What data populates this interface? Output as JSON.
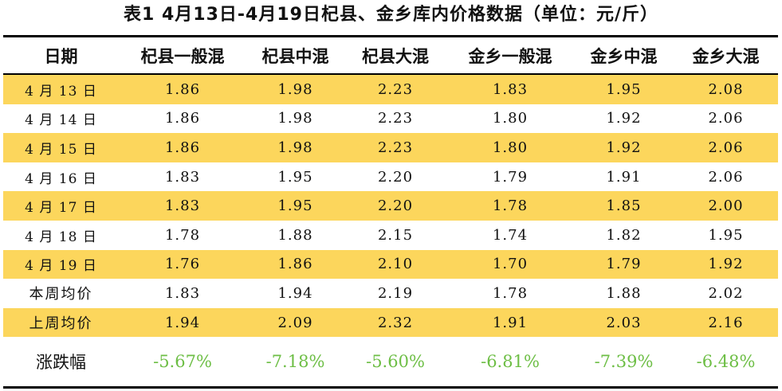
{
  "title": "表1  4月13日-4月19日杞县、金乡库内价格数据（单位：元/斤）",
  "colors": {
    "row_shade": "#FCD65C",
    "change_text": "#6DBE45",
    "rule": "#000000"
  },
  "table": {
    "headers": [
      "日期",
      "杞县一般混",
      "杞县中混",
      "杞县大混",
      "金乡一般混",
      "金乡中混",
      "金乡大混"
    ],
    "rows": [
      {
        "label": "4 月 13 日",
        "values": [
          "1.86",
          "1.98",
          "2.23",
          "1.83",
          "1.95",
          "2.08"
        ],
        "shaded": true
      },
      {
        "label": "4 月 14 日",
        "values": [
          "1.86",
          "1.98",
          "2.23",
          "1.80",
          "1.92",
          "2.06"
        ],
        "shaded": false
      },
      {
        "label": "4 月 15 日",
        "values": [
          "1.86",
          "1.98",
          "2.23",
          "1.80",
          "1.92",
          "2.06"
        ],
        "shaded": true
      },
      {
        "label": "4 月 16 日",
        "values": [
          "1.83",
          "1.95",
          "2.20",
          "1.79",
          "1.91",
          "2.06"
        ],
        "shaded": false
      },
      {
        "label": "4 月 17 日",
        "values": [
          "1.83",
          "1.95",
          "2.20",
          "1.78",
          "1.85",
          "2.00"
        ],
        "shaded": true
      },
      {
        "label": "4 月 18 日",
        "values": [
          "1.78",
          "1.88",
          "2.15",
          "1.74",
          "1.82",
          "1.95"
        ],
        "shaded": false
      },
      {
        "label": "4 月 19 日",
        "values": [
          "1.76",
          "1.86",
          "2.10",
          "1.70",
          "1.79",
          "1.92"
        ],
        "shaded": true
      },
      {
        "label": "本周均价",
        "values": [
          "1.83",
          "1.94",
          "2.19",
          "1.78",
          "1.88",
          "2.02"
        ],
        "shaded": false
      },
      {
        "label": "上周均价",
        "values": [
          "1.94",
          "2.09",
          "2.32",
          "1.91",
          "2.03",
          "2.16"
        ],
        "shaded": true
      }
    ],
    "change": {
      "label": "涨跌幅",
      "values": [
        "-5.67%",
        "-7.18%",
        "-5.60%",
        "-6.81%",
        "-7.39%",
        "-6.48%"
      ]
    }
  }
}
